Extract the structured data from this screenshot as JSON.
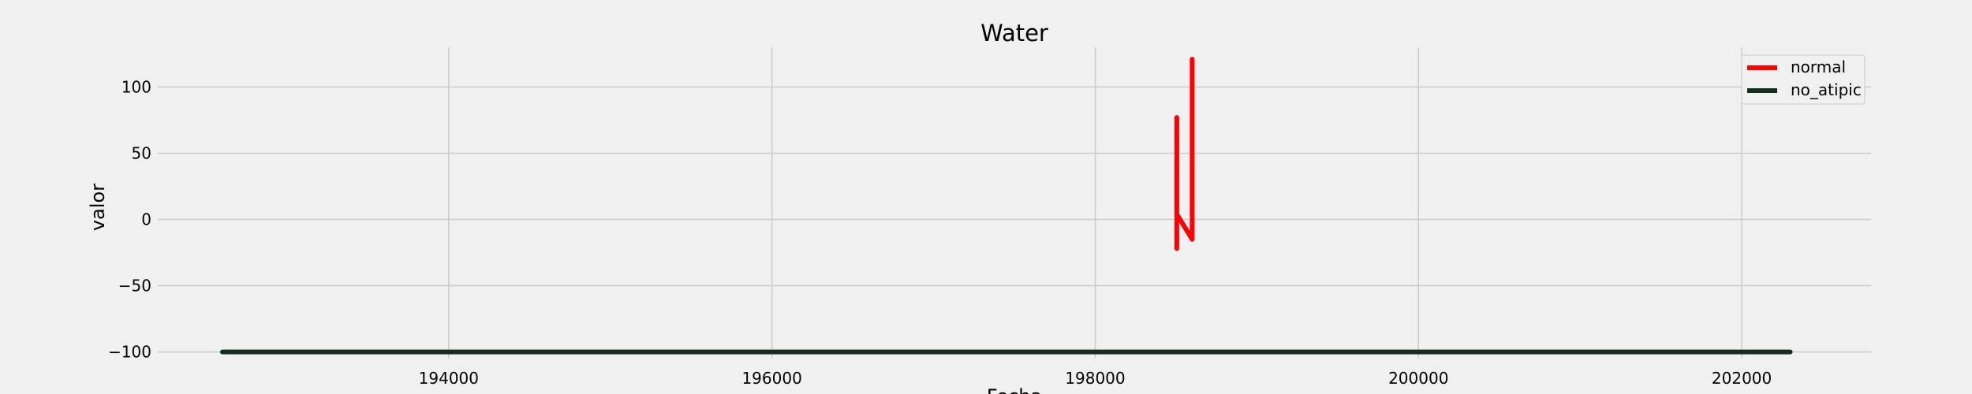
{
  "chart_data": {
    "type": "line",
    "title": "Water",
    "xlabel": "Fecha",
    "ylabel": "valor",
    "xlim": [
      192200,
      202800
    ],
    "ylim": [
      -105,
      130
    ],
    "xticks": [
      194000,
      196000,
      198000,
      200000,
      202000
    ],
    "yticks": [
      -100,
      -50,
      0,
      50,
      100
    ],
    "xtick_labels": [
      "194000",
      "196000",
      "198000",
      "200000",
      "202000"
    ],
    "ytick_labels": [
      "−100",
      "−50",
      "0",
      "50",
      "100"
    ],
    "grid": true,
    "legend_position": "top-right",
    "series": [
      {
        "name": "normal",
        "color": "#ff0000",
        "x": [
          198505,
          198505,
          198505,
          198600,
          198600,
          198600
        ],
        "y": [
          77,
          -22,
          4,
          -15,
          121,
          2
        ]
      },
      {
        "name": "no_atipic",
        "color": "#0f2e1e",
        "x": [
          192600,
          202300
        ],
        "y": [
          -100,
          -100
        ]
      }
    ]
  }
}
